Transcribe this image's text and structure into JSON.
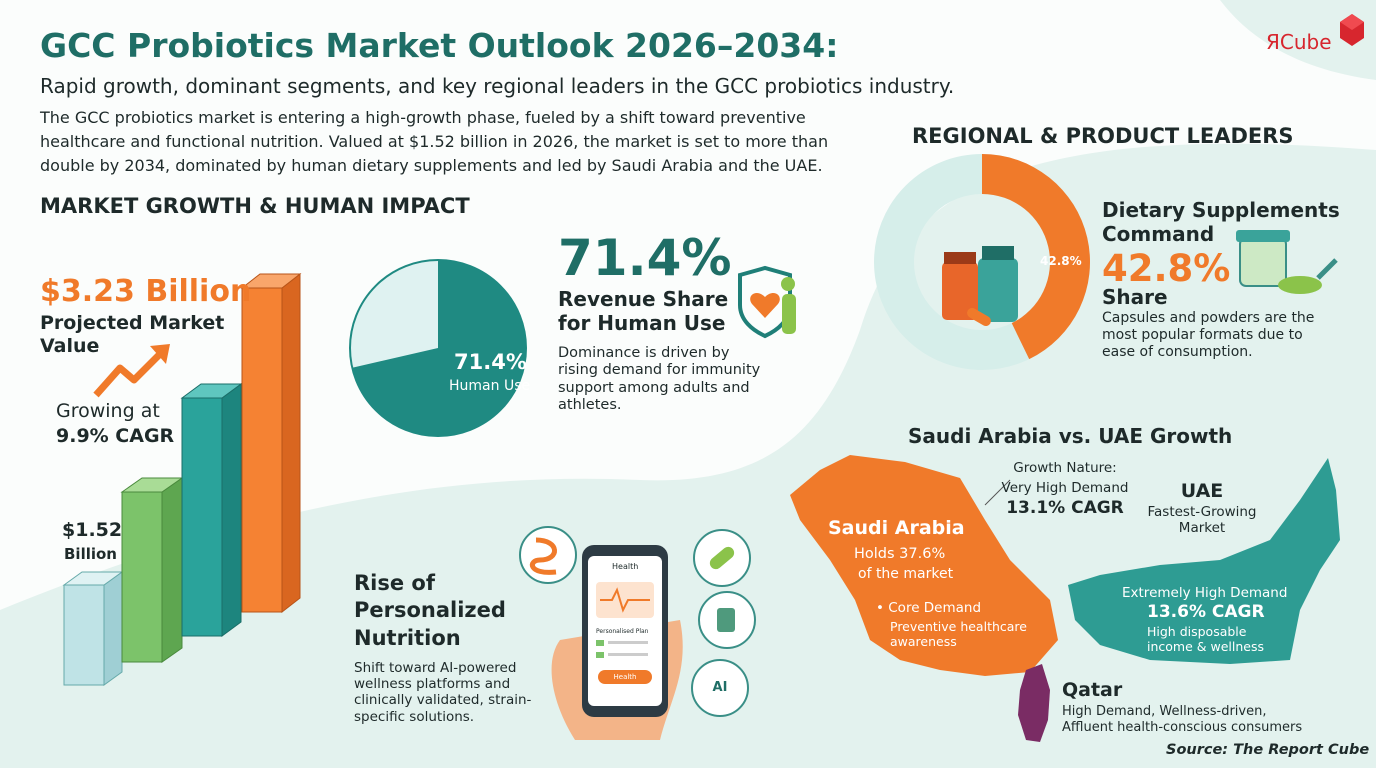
{
  "header": {
    "title": "GCC Probiotics Market Outlook 2026–2034:",
    "subtitle": "Rapid growth, dominant segments, and key regional leaders in the GCC probiotics industry.",
    "intro": "The GCC probiotics market is entering a high-growth phase, fueled by a shift toward preventive healthcare and functional nutrition. Valued at $1.52 billion in 2026, the market is set to more than double by 2034, dominated by human dietary supplements and led by Saudi Arabia and the UAE.",
    "logo": "ЯCube"
  },
  "market_growth": {
    "heading": "MARKET GROWTH & HUMAN IMPACT",
    "projected_value": "$3.23 Billion",
    "projected_label": "Projected Market Value",
    "cagr_prefix": "Growing at",
    "cagr": "9.9% CAGR",
    "start_value": "$1.52",
    "start_unit": "Billion"
  },
  "human_use": {
    "share": {
      "value": 71.4,
      "label": "71.4%"
    },
    "pie_caption": "Human Use",
    "title": "Revenue Share for Human Use",
    "description": "Dominance is driven by rising demand for immunity support among adults and athletes."
  },
  "personalized": {
    "title": "Rise of Personalized Nutrition",
    "description": "Shift toward AI-powered wellness platforms and clinically validated, strain-specific solutions.",
    "phone": {
      "header": "Health",
      "plan": "Personalised Plan",
      "button": "Health",
      "ai": "AI"
    }
  },
  "regional": {
    "heading": "REGIONAL & PRODUCT LEADERS",
    "supplements": {
      "share": {
        "value": 42.8,
        "label": "42.8%"
      },
      "title": "Dietary Supplements Command",
      "share_suffix": "Share",
      "description": "Capsules and powders are the most popular formats due to ease of consumption."
    },
    "comparison_heading": "Saudi Arabia vs. UAE Growth",
    "saudi": {
      "name": "Saudi Arabia",
      "holds": "Holds 37.6%",
      "holds_suffix": "of the market",
      "core": "• Core Demand",
      "core_detail": "Preventive healthcare awareness"
    },
    "growth_nature": {
      "label": "Growth Nature:",
      "demand": "Very High Demand",
      "cagr": "13.1% CAGR"
    },
    "uae": {
      "name": "UAE",
      "tagline": "Fastest-Growing Market",
      "demand": "Extremely High Demand",
      "cagr": "13.6% CAGR",
      "detail": "High disposable income & wellness"
    },
    "qatar": {
      "name": "Qatar",
      "line1": "High Demand, Wellness-driven,",
      "line2": "Affluent health-conscious consumers"
    }
  },
  "source": "Source: The Report Cube"
}
